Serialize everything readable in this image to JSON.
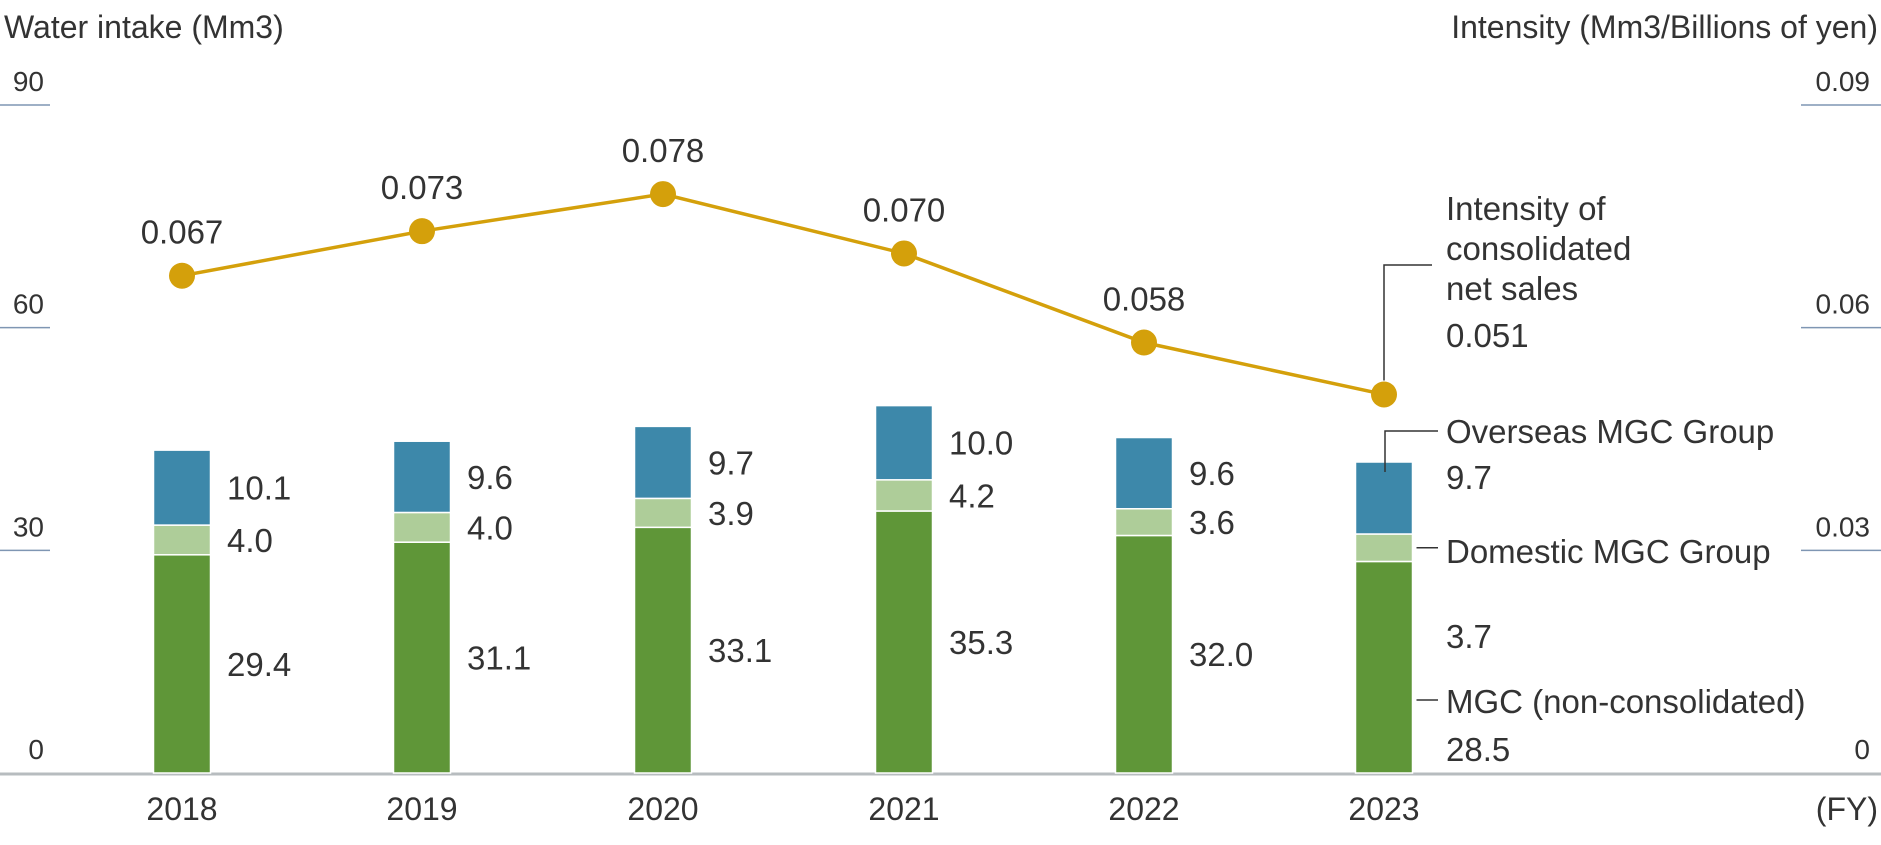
{
  "chart_data": {
    "type": "bar",
    "combo": "stacked bar with line on secondary axis",
    "left_axis_title": "Water intake (Mm3)",
    "right_axis_title": "Intensity (Mm3/Billions of yen)",
    "x_unit_label": "(FY)",
    "categories": [
      "2018",
      "2019",
      "2020",
      "2021",
      "2022",
      "2023"
    ],
    "ylim": [
      0,
      90
    ],
    "y_ticks": [
      "0",
      "30",
      "60",
      "90"
    ],
    "y2lim": [
      0,
      0.09
    ],
    "y2_ticks": [
      "0",
      "0.03",
      "0.06",
      "0.09"
    ],
    "series": [
      {
        "name": "MGC (non-consolidated)",
        "color": "#5f9638",
        "values": [
          29.4,
          31.1,
          33.1,
          35.3,
          32.0,
          28.5
        ],
        "labels": [
          "29.4",
          "31.1",
          "33.1",
          "35.3",
          "32.0",
          "28.5"
        ]
      },
      {
        "name": "Domestic MGC Group",
        "color": "#aecd99",
        "values": [
          4.0,
          4.0,
          3.9,
          4.2,
          3.6,
          3.7
        ],
        "labels": [
          "4.0",
          "4.0",
          "3.9",
          "4.2",
          "3.6",
          "3.7"
        ]
      },
      {
        "name": "Overseas MGC Group",
        "color": "#3d88aa",
        "values": [
          10.1,
          9.6,
          9.7,
          10.0,
          9.6,
          9.7
        ],
        "labels": [
          "10.1",
          "9.6",
          "9.7",
          "10.0",
          "9.6",
          "9.7"
        ]
      }
    ],
    "line": {
      "name": "Intensity of consolidated net sales",
      "name_lines": [
        "Intensity of",
        "consolidated",
        "net sales"
      ],
      "axis": "right",
      "color": "#d4a00b",
      "values": [
        0.067,
        0.073,
        0.078,
        0.07,
        0.058,
        0.051
      ],
      "labels": [
        "0.067",
        "0.073",
        "0.078",
        "0.070",
        "0.058",
        "0.051"
      ]
    },
    "grid": false,
    "legend": "direct labels at right of last bar"
  }
}
